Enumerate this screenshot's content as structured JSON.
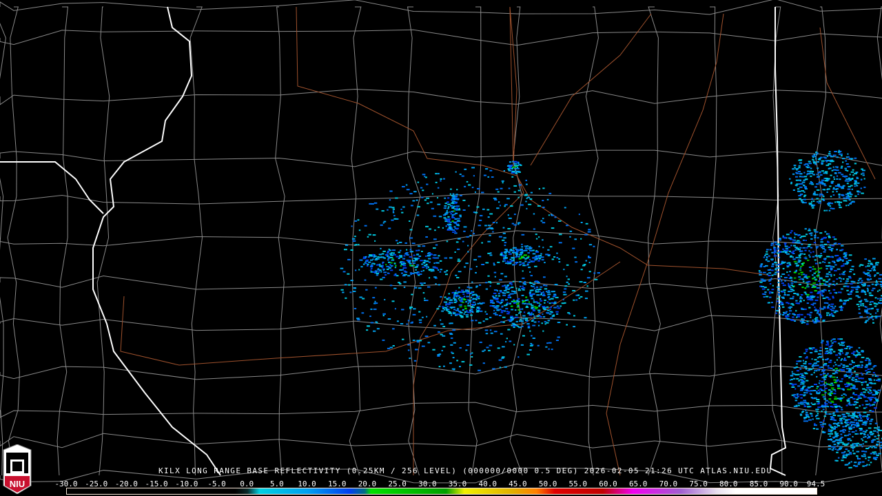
{
  "product": {
    "caption": "KILX LONG RANGE BASE REFLECTIVITY (0.25KM / 256 LEVEL) (000000/0000 0.5 DEG) 2026-02-05 21:26 UTC  ATLAS.NIU.EDU",
    "radar_site": "KILX",
    "elevation": "0.5 DEG",
    "timestamp": "2026-02-05 21:26 UTC",
    "source": "ATLAS.NIU.EDU"
  },
  "logo": {
    "text": "NIU",
    "icon": "niu-shield-logo"
  },
  "colorbar": {
    "unit_range": [
      -30.0,
      94.5
    ],
    "tick_labels": [
      "-30.0",
      "-25.0",
      "-20.0",
      "-15.0",
      "-10.0",
      "-5.0",
      "0.0",
      "5.0",
      "10.0",
      "15.0",
      "20.0",
      "25.0",
      "30.0",
      "35.0",
      "40.0",
      "45.0",
      "50.0",
      "55.0",
      "60.0",
      "65.0",
      "70.0",
      "75.0",
      "80.0",
      "85.0",
      "90.0",
      "94.5"
    ],
    "colors": {
      "background": "#000000",
      "near_zero": "#0a2a2a",
      "cyan": "#00d0e0",
      "blue": "#0040f0",
      "green": "#00e000",
      "yellow": "#f0f000",
      "orange": "#ff8000",
      "red": "#e00000",
      "magenta": "#f000f0",
      "purple": "#a060d0",
      "lavender": "#e8e0f0",
      "white": "#ffffff"
    }
  },
  "map_colors": {
    "county_lines": "#8a8a8a",
    "state_lines": "#ffffff",
    "highways": "#a0522d"
  }
}
